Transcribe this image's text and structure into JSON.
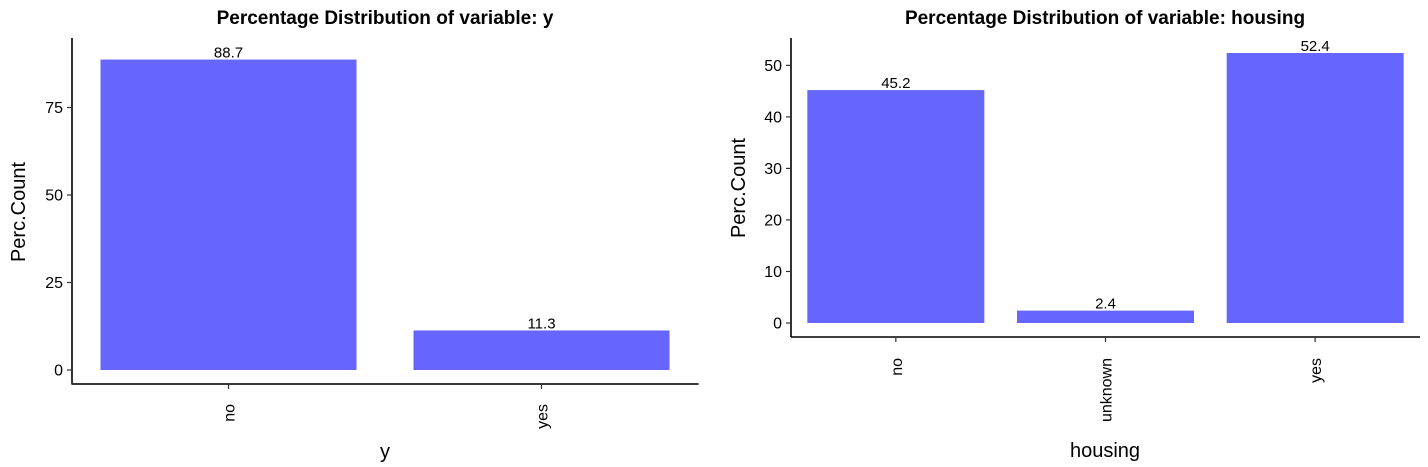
{
  "chart_data": [
    {
      "type": "bar",
      "title": "Percentage Distribution of variable: y",
      "xlabel": "y",
      "ylabel": "Perc.Count",
      "categories": [
        "no",
        "yes"
      ],
      "values": [
        88.7,
        11.3
      ],
      "data_labels": [
        "88.7",
        "11.3"
      ],
      "yticks": [
        0,
        25,
        50,
        75
      ],
      "ylim": [
        0,
        90
      ],
      "bar_color": "#6666FF",
      "grid": false,
      "legend": "none"
    },
    {
      "type": "bar",
      "title": "Percentage Distribution of variable: housing",
      "xlabel": "housing",
      "ylabel": "Perc.Count",
      "categories": [
        "no",
        "unknown",
        "yes"
      ],
      "values": [
        45.2,
        2.4,
        52.4
      ],
      "data_labels": [
        "45.2",
        "2.4",
        "52.4"
      ],
      "yticks": [
        0,
        10,
        20,
        30,
        40,
        50
      ],
      "ylim": [
        0,
        52.4
      ],
      "bar_color": "#6666FF",
      "grid": false,
      "legend": "none"
    }
  ]
}
